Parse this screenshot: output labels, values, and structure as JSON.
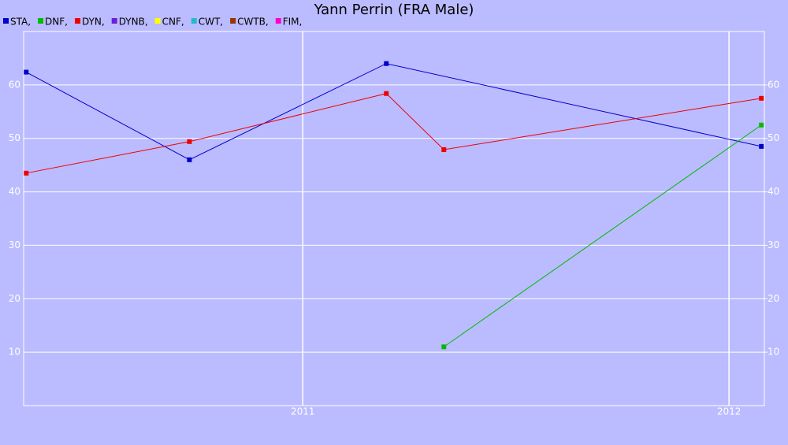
{
  "chart_data": {
    "type": "line",
    "title": "Yann Perrin (FRA Male)",
    "xlim": [
      2010.345,
      2012.083
    ],
    "xticks": [
      2011,
      2012
    ],
    "ylim": [
      0,
      70
    ],
    "yticks": [
      10,
      20,
      30,
      40,
      50,
      60
    ],
    "y2lim": [
      0,
      70
    ],
    "y2ticks": [
      10,
      20,
      30,
      40,
      50,
      60
    ],
    "grid": true,
    "series": [
      {
        "name": "STA,",
        "color": "#0000cc",
        "x": [
          2010.351,
          2010.734,
          2011.196,
          2012.076
        ],
        "values": [
          62.4,
          46.0,
          64.0,
          48.5
        ]
      },
      {
        "name": "DNF,",
        "color": "#00bb00",
        "x": [
          2011.331,
          2012.076
        ],
        "values": [
          11.0,
          52.5
        ]
      },
      {
        "name": "DYN,",
        "color": "#ee0000",
        "x": [
          2010.351,
          2010.734,
          2011.196,
          2011.331,
          2012.076
        ],
        "values": [
          43.5,
          49.4,
          58.4,
          47.9,
          57.5
        ]
      },
      {
        "name": "DYNB,",
        "color": "#6a1fd6",
        "x": [],
        "values": []
      },
      {
        "name": "CNF,",
        "color": "#ffff00",
        "x": [],
        "values": []
      },
      {
        "name": "CWT,",
        "color": "#22bbcc",
        "x": [],
        "values": []
      },
      {
        "name": "CWTB,",
        "color": "#993300",
        "x": [],
        "values": []
      },
      {
        "name": "FIM,",
        "color": "#ff00cc",
        "x": [],
        "values": []
      }
    ]
  }
}
